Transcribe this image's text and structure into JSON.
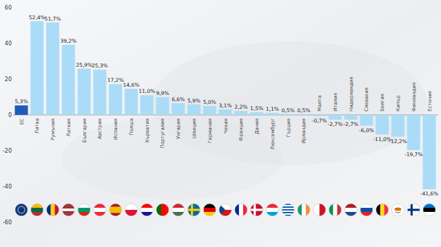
{
  "chart_data": {
    "type": "bar",
    "categories": [
      "ЕС",
      "Литва",
      "Румъния",
      "Латвия",
      "България",
      "Австрия",
      "Испания",
      "Полша",
      "Хърватия",
      "Португалия",
      "Унгария",
      "Швеция",
      "Германия",
      "Чехия",
      "Франция",
      "Дания",
      "Люксембург",
      "Гърция",
      "Ирландия",
      "Малта",
      "Италия",
      "Нидерландия",
      "Словакия",
      "Белгия",
      "Кипър",
      "Финландия",
      "Естония"
    ],
    "values": [
      5.3,
      52.4,
      51.7,
      39.2,
      25.9,
      25.3,
      17.2,
      14.6,
      11.0,
      9.9,
      6.6,
      5.9,
      5.0,
      3.1,
      2.2,
      1.5,
      1.1,
      0.5,
      0.5,
      -0.7,
      -2.7,
      -2.7,
      -6.0,
      -11.0,
      -12.2,
      -19.7,
      -41.6
    ],
    "value_labels": [
      "5,3%",
      "52,4%",
      "51,7%",
      "39,2%",
      "25,9%",
      "25,3%",
      "17,2%",
      "14,6%",
      "11,0%",
      "9,9%",
      "6,6%",
      "5,9%",
      "5,0%",
      "3,1%",
      "2,2%",
      "1,5%",
      "1,1%",
      "0,5%",
      "0,5%",
      "-0,7%",
      "-2,7%",
      "-2,7%",
      "-6,0%",
      "-11,0%",
      "-12,2%",
      "-19,7%",
      "-41,6%"
    ],
    "colors": [
      "#1f5bb8",
      "#aadcf8",
      "#aadcf8",
      "#aadcf8",
      "#aadcf8",
      "#aadcf8",
      "#aadcf8",
      "#aadcf8",
      "#aadcf8",
      "#aadcf8",
      "#aadcf8",
      "#aadcf8",
      "#aadcf8",
      "#aadcf8",
      "#aadcf8",
      "#aadcf8",
      "#aadcf8",
      "#aadcf8",
      "#aadcf8",
      "#aadcf8",
      "#aadcf8",
      "#aadcf8",
      "#aadcf8",
      "#aadcf8",
      "#aadcf8",
      "#aadcf8",
      "#aadcf8"
    ],
    "ylim": [
      -60,
      60
    ],
    "yticks": [
      -60,
      -40,
      -20,
      0,
      20,
      40,
      60
    ],
    "grid": false,
    "data_labels": true
  }
}
